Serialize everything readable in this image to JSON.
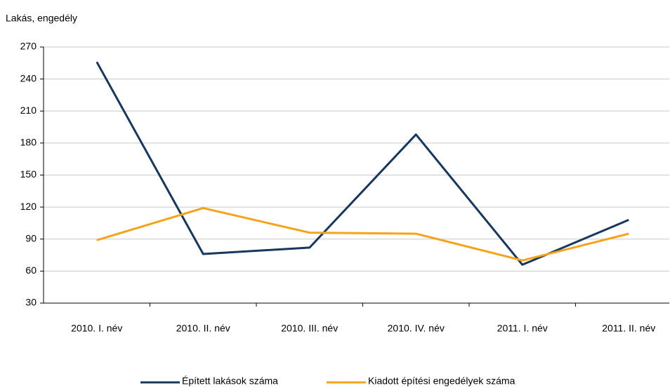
{
  "chart_data": {
    "type": "line",
    "y_axis_label": "Lakás, engedély",
    "categories": [
      "2010. I. név",
      "2010. II. név",
      "2010. III. név",
      "2010. IV. név",
      "2011. I. név",
      "2011. II. név"
    ],
    "series": [
      {
        "name": "Épített lakások száma",
        "color": "#17375e",
        "values": [
          256,
          76,
          82,
          188,
          66,
          108
        ]
      },
      {
        "name": "Kiadott építési engedélyek száma",
        "color": "#f5a31a",
        "values": [
          89,
          119,
          96,
          95,
          70,
          95
        ]
      }
    ],
    "ylim": [
      30,
      270
    ],
    "yticks": [
      30,
      60,
      90,
      120,
      150,
      180,
      210,
      240,
      270
    ],
    "grid": true
  }
}
